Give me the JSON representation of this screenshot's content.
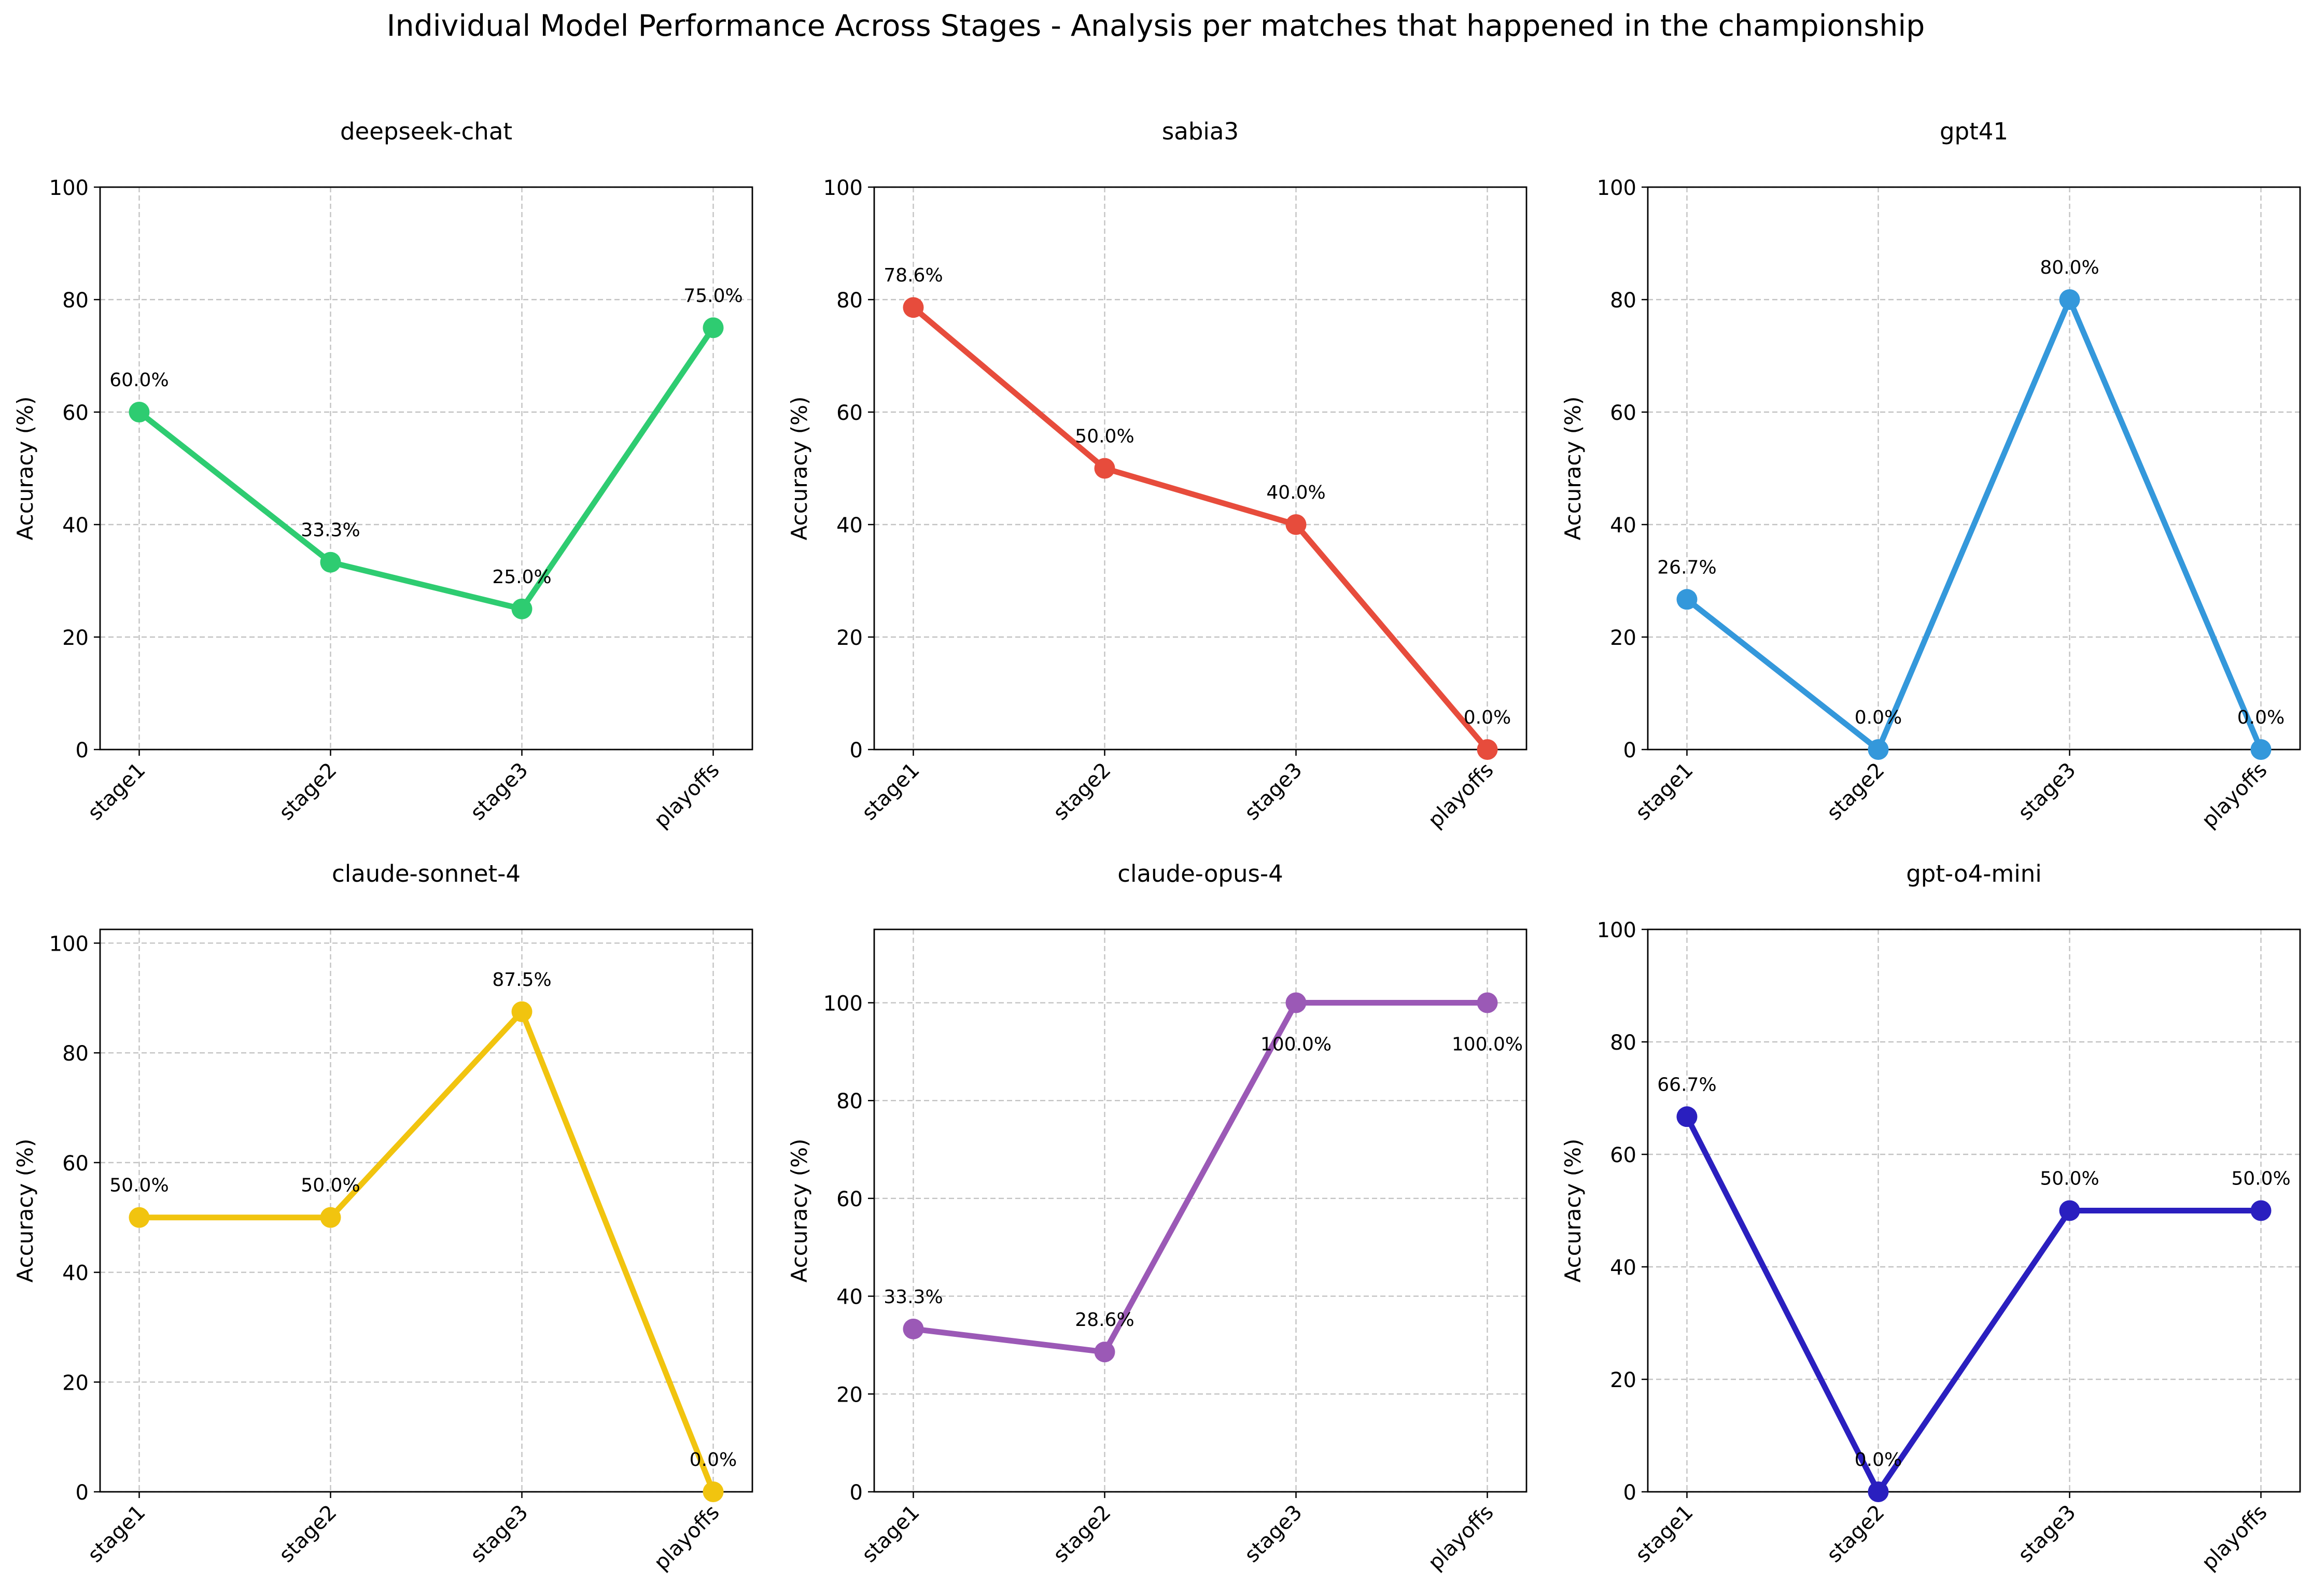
{
  "figure": {
    "title": "Individual Model Performance Across Stages - Analysis per matches that happened in the championship"
  },
  "chart_data": [
    {
      "type": "line",
      "title": "deepseek-chat",
      "xlabel": "",
      "ylabel": "Accuracy (%)",
      "categories": [
        "stage1",
        "stage2",
        "stage3",
        "playoffs"
      ],
      "values": [
        60.0,
        33.3,
        25.0,
        75.0
      ],
      "data_labels": [
        "60.0%",
        "33.3%",
        "25.0%",
        "75.0%"
      ],
      "label_position": "above",
      "ylim": [
        0,
        100
      ],
      "yticks": [
        "0",
        "20",
        "40",
        "60",
        "80",
        "100"
      ],
      "color": "#2ecc71",
      "grid": true
    },
    {
      "type": "line",
      "title": "sabia3",
      "xlabel": "",
      "ylabel": "Accuracy (%)",
      "categories": [
        "stage1",
        "stage2",
        "stage3",
        "playoffs"
      ],
      "values": [
        78.6,
        50.0,
        40.0,
        0.0
      ],
      "data_labels": [
        "78.6%",
        "50.0%",
        "40.0%",
        "0.0%"
      ],
      "label_position": "above",
      "ylim": [
        0,
        100
      ],
      "yticks": [
        "0",
        "20",
        "40",
        "60",
        "80",
        "100"
      ],
      "color": "#e74c3c",
      "grid": true
    },
    {
      "type": "line",
      "title": "gpt41",
      "xlabel": "",
      "ylabel": "Accuracy (%)",
      "categories": [
        "stage1",
        "stage2",
        "stage3",
        "playoffs"
      ],
      "values": [
        26.7,
        0.0,
        80.0,
        0.0
      ],
      "data_labels": [
        "26.7%",
        "0.0%",
        "80.0%",
        "0.0%"
      ],
      "label_position": "above",
      "ylim": [
        0,
        100
      ],
      "yticks": [
        "0",
        "20",
        "40",
        "60",
        "80",
        "100"
      ],
      "color": "#3498db",
      "grid": true
    },
    {
      "type": "line",
      "title": "claude-sonnet-4",
      "xlabel": "",
      "ylabel": "Accuracy (%)",
      "categories": [
        "stage1",
        "stage2",
        "stage3",
        "playoffs"
      ],
      "values": [
        50.0,
        50.0,
        87.5,
        0.0
      ],
      "data_labels": [
        "50.0%",
        "50.0%",
        "87.5%",
        "0.0%"
      ],
      "label_position": "above",
      "ylim": [
        0,
        102.5
      ],
      "yticks": [
        "0",
        "20",
        "40",
        "60",
        "80",
        "100"
      ],
      "color": "#f1c40f",
      "grid": true
    },
    {
      "type": "line",
      "title": "claude-opus-4",
      "xlabel": "",
      "ylabel": "Accuracy (%)",
      "categories": [
        "stage1",
        "stage2",
        "stage3",
        "playoffs"
      ],
      "values": [
        33.3,
        28.6,
        100.0,
        100.0
      ],
      "data_labels": [
        "33.3%",
        "28.6%",
        "100.0%",
        "100.0%"
      ],
      "label_position": "below-at-top",
      "ylim": [
        0,
        115
      ],
      "yticks": [
        "0",
        "20",
        "40",
        "60",
        "80",
        "100"
      ],
      "color": "#9b59b6",
      "grid": true
    },
    {
      "type": "line",
      "title": "gpt-o4-mini",
      "xlabel": "",
      "ylabel": "Accuracy (%)",
      "categories": [
        "stage1",
        "stage2",
        "stage3",
        "playoffs"
      ],
      "values": [
        66.7,
        0.0,
        50.0,
        50.0
      ],
      "data_labels": [
        "66.7%",
        "0.0%",
        "50.0%",
        "50.0%"
      ],
      "label_position": "above",
      "ylim": [
        0,
        100
      ],
      "yticks": [
        "0",
        "20",
        "40",
        "60",
        "80",
        "100"
      ],
      "color": "#2a1fbf",
      "grid": true
    }
  ]
}
